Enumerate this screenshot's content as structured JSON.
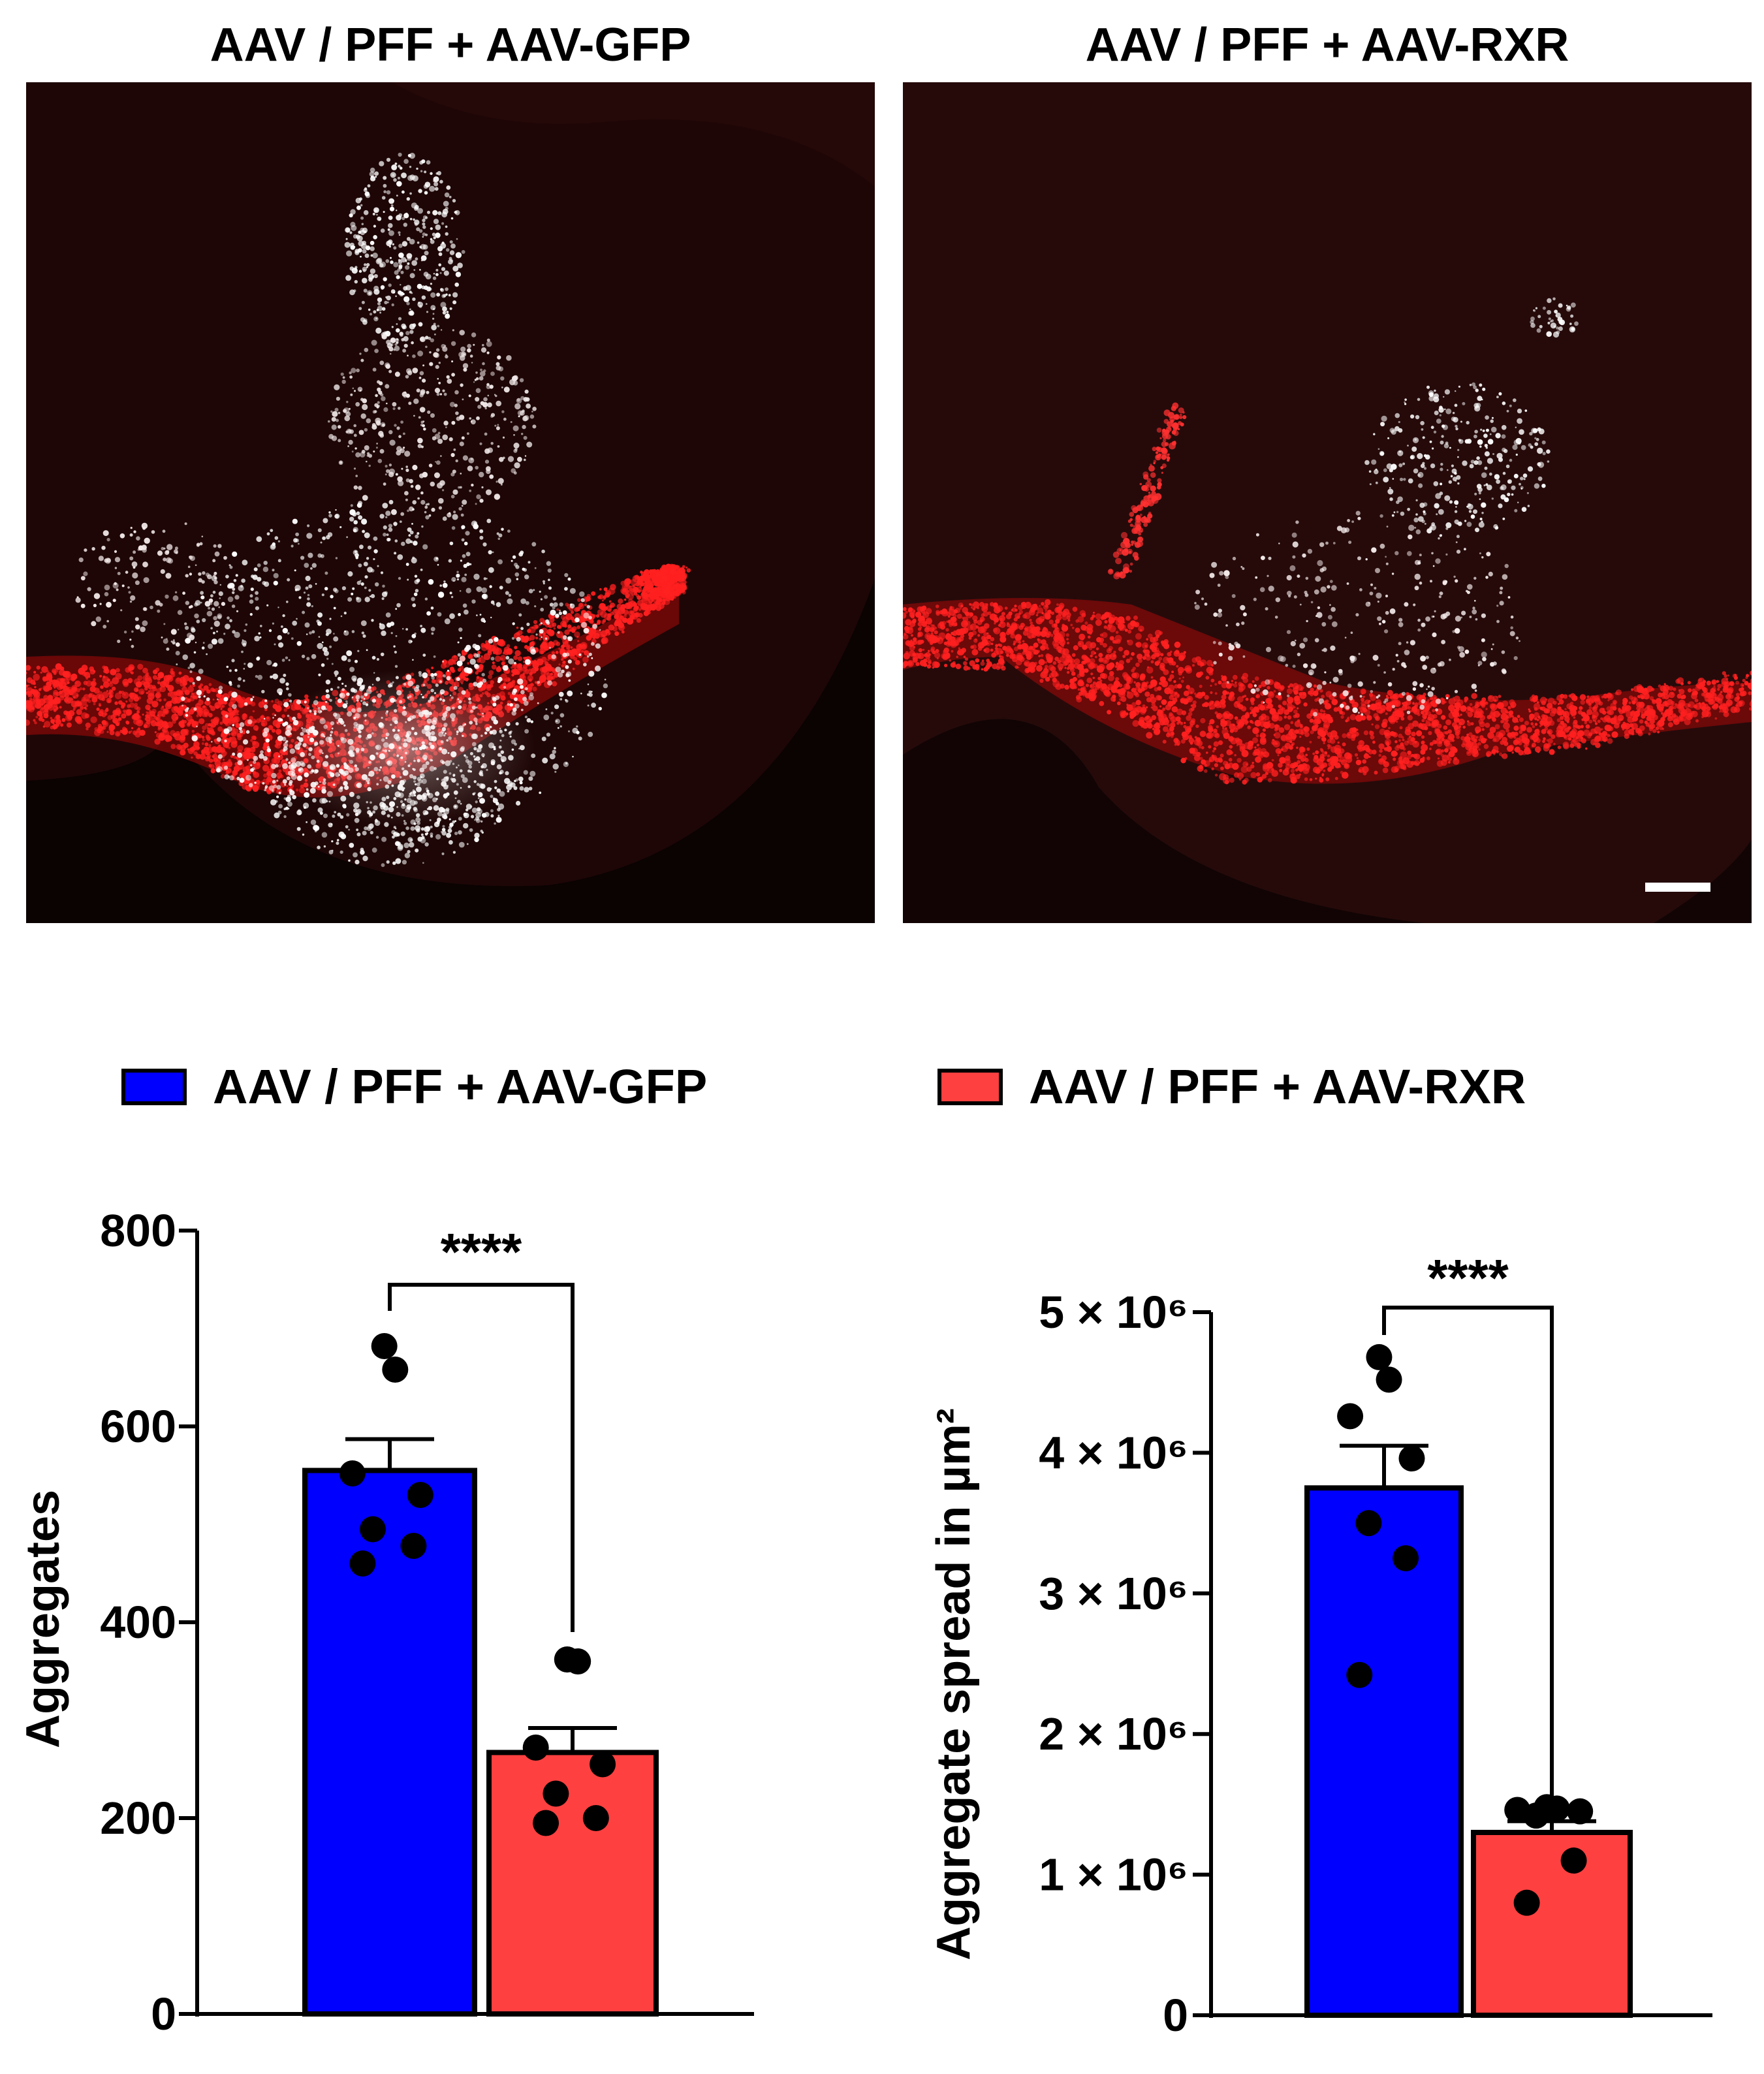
{
  "panels": [
    {
      "title": "AAV / PFF + AAV-GFP"
    },
    {
      "title": "AAV / PFF + AAV-RXR"
    }
  ],
  "legend": [
    {
      "label": "AAV / PFF + AAV-GFP",
      "color": "#0000ff"
    },
    {
      "label": "AAV / PFF + AAV-RXR",
      "color": "#ff4040"
    }
  ],
  "colors": {
    "gfp": "#0000ff",
    "rxr": "#ff4040",
    "stain": "#ff1a1a",
    "background": "#1e0606"
  },
  "chart_data": [
    {
      "type": "bar",
      "title": "",
      "xlabel": "",
      "ylabel": "Aggregates",
      "ylim": [
        0,
        800
      ],
      "yticks": [
        "0",
        "200",
        "400",
        "600",
        "800"
      ],
      "ytick_values": [
        0,
        200,
        400,
        600,
        800
      ],
      "bars": [
        {
          "group": "AAV / PFF + AAV-GFP",
          "value": 555,
          "sem": 32,
          "points": [
            682,
            658,
            552,
            530,
            495,
            478,
            460
          ]
        },
        {
          "group": "AAV / PFF + AAV-RXR",
          "value": 267,
          "sem": 25,
          "points": [
            362,
            360,
            272,
            255,
            225,
            200,
            195
          ]
        }
      ],
      "significance": "****",
      "grid": false
    },
    {
      "type": "bar",
      "title": "",
      "xlabel": "",
      "ylabel": "Aggregate spread in µm²",
      "ylim": [
        0,
        5000000
      ],
      "yticks": [
        "0",
        "1 × 10⁶",
        "2 × 10⁶",
        "3 × 10⁶",
        "4 × 10⁶",
        "5 × 10⁶"
      ],
      "ytick_values": [
        0,
        1000000,
        2000000,
        3000000,
        4000000,
        5000000
      ],
      "bars": [
        {
          "group": "AAV / PFF + AAV-GFP",
          "value": 3750000,
          "sem": 300000,
          "points": [
            4680000,
            4520000,
            4260000,
            3960000,
            3500000,
            3250000,
            2420000
          ]
        },
        {
          "group": "AAV / PFF + AAV-RXR",
          "value": 1300000,
          "sem": 80000,
          "points": [
            1480000,
            1470000,
            1460000,
            1450000,
            1420000,
            1100000,
            800000
          ]
        }
      ],
      "significance": "****",
      "grid": false
    }
  ]
}
